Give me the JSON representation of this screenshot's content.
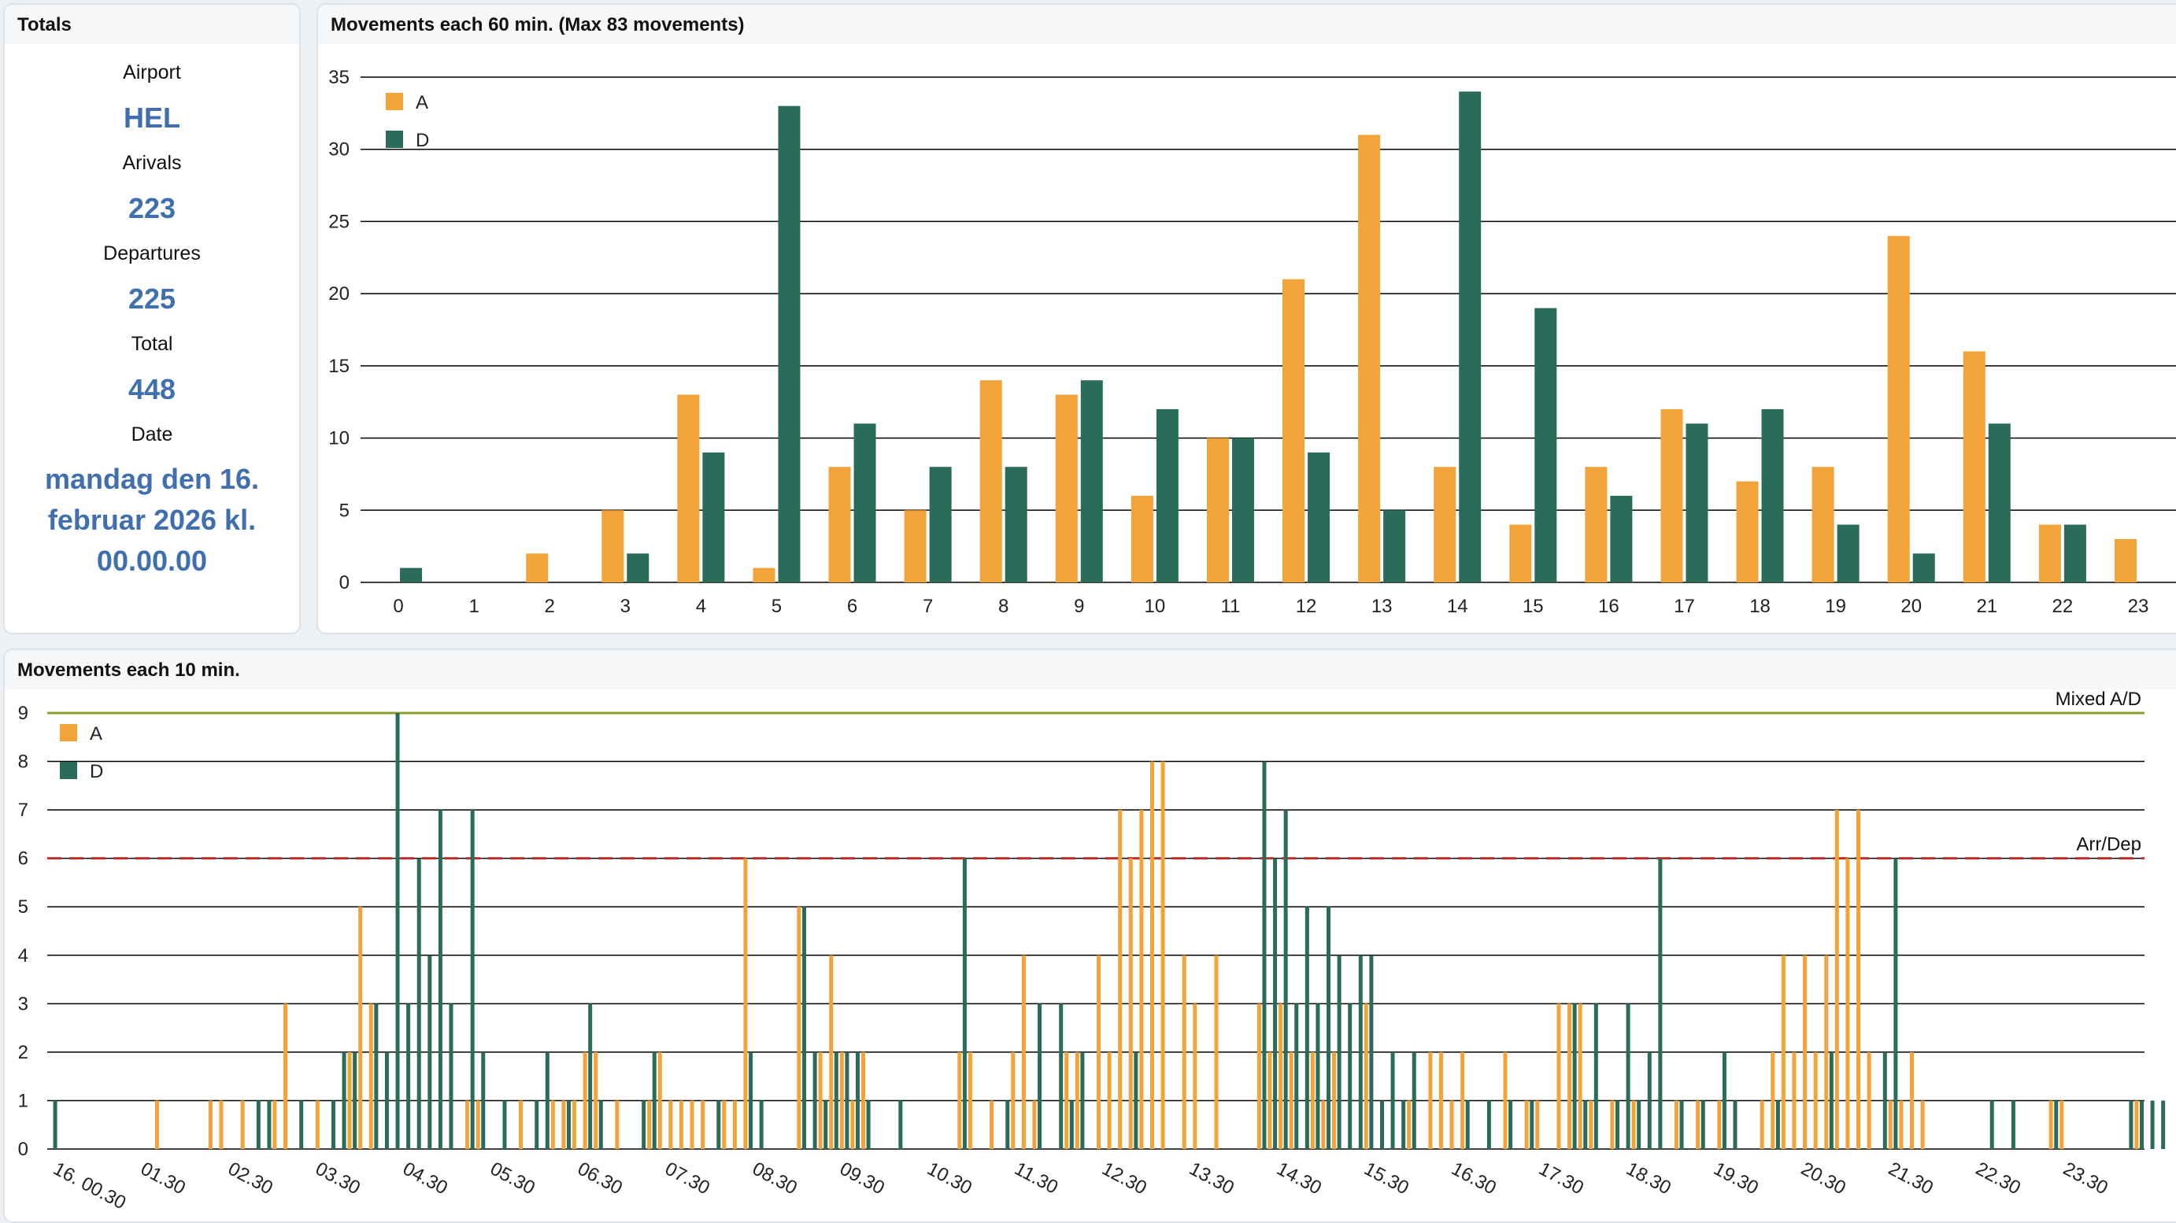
{
  "colors": {
    "arrival": "#f2a33a",
    "departure": "#2a6b5a",
    "mixed_line": "#8aa02a",
    "arrdep_line": "#c0302a",
    "grid": "#000000",
    "value_text": "#3f6fae"
  },
  "totals": {
    "title": "Totals",
    "airport_label": "Airport",
    "airport": "HEL",
    "arrivals_label": "Arivals",
    "arrivals": "223",
    "departures_label": "Departures",
    "departures": "225",
    "total_label": "Total",
    "total": "448",
    "date_label": "Date",
    "date": "mandag den 16. februar 2026 kl. 00.00.00"
  },
  "chart_data": [
    {
      "type": "bar",
      "title": "Movements each 60 min. (Max 83 movements)",
      "legend": "top-left",
      "ylim": [
        0,
        35
      ],
      "yticks": [
        0,
        5,
        10,
        15,
        20,
        25,
        30,
        35
      ],
      "categories": [
        "0",
        "1",
        "2",
        "3",
        "4",
        "5",
        "6",
        "7",
        "8",
        "9",
        "10",
        "11",
        "12",
        "13",
        "14",
        "15",
        "16",
        "17",
        "18",
        "19",
        "20",
        "21",
        "22",
        "23"
      ],
      "series": [
        {
          "name": "A",
          "values": [
            0,
            0,
            2,
            5,
            13,
            1,
            8,
            5,
            14,
            13,
            6,
            10,
            21,
            31,
            8,
            4,
            8,
            12,
            7,
            8,
            24,
            16,
            4,
            3
          ]
        },
        {
          "name": "D",
          "values": [
            1,
            0,
            0,
            2,
            9,
            33,
            11,
            8,
            8,
            14,
            12,
            10,
            9,
            5,
            34,
            19,
            6,
            11,
            12,
            4,
            2,
            11,
            4,
            0
          ]
        }
      ],
      "grid": true
    },
    {
      "type": "bar",
      "title": "Movements each 10 min.",
      "legend": "top-left",
      "ylim": [
        0,
        9
      ],
      "yticks": [
        0,
        1,
        2,
        3,
        4,
        5,
        6,
        7,
        8,
        9
      ],
      "x_tick_labels": [
        "16. 00.30",
        "01.30",
        "02.30",
        "03.30",
        "04.30",
        "05.30",
        "06.30",
        "07.30",
        "08.30",
        "09.30",
        "10.30",
        "11.30",
        "12.30",
        "13.30",
        "14.30",
        "15.30",
        "16.30",
        "17.30",
        "18.30",
        "19.30",
        "20.30",
        "21.30",
        "22.30",
        "23.30"
      ],
      "reference_lines": [
        {
          "label": "Mixed A/D",
          "value": 9,
          "style": "solid"
        },
        {
          "label": "Arr/Dep",
          "value": 6,
          "style": "dashed"
        }
      ],
      "series": [
        {
          "name": "A",
          "values": [
            0,
            0,
            0,
            0,
            0,
            0,
            0,
            0,
            0,
            0,
            1,
            0,
            0,
            0,
            0,
            1,
            1,
            0,
            1,
            0,
            0,
            1,
            3,
            0,
            0,
            1,
            0,
            0,
            2,
            5,
            3,
            0,
            0,
            0,
            0,
            0,
            0,
            0,
            0,
            1,
            1,
            0,
            0,
            0,
            1,
            0,
            0,
            1,
            1,
            1,
            2,
            2,
            0,
            1,
            0,
            0,
            1,
            2,
            1,
            1,
            1,
            1,
            0,
            1,
            1,
            6,
            0,
            0,
            0,
            0,
            5,
            0,
            2,
            4,
            2,
            1,
            2,
            0,
            0,
            0,
            0,
            0,
            0,
            0,
            0,
            2,
            2,
            0,
            1,
            0,
            2,
            4,
            1,
            0,
            0,
            2,
            2,
            0,
            4,
            2,
            7,
            6,
            7,
            8,
            8,
            0,
            4,
            3,
            0,
            4,
            0,
            0,
            0,
            3,
            2,
            3,
            2,
            0,
            2,
            1,
            2,
            0,
            0,
            3,
            0,
            0,
            0,
            1,
            0,
            2,
            2,
            1,
            2,
            0,
            0,
            0,
            2,
            0,
            1,
            1,
            0,
            3,
            3,
            3,
            1,
            0,
            1,
            0,
            1,
            0,
            0,
            0,
            1,
            0,
            1,
            0,
            1,
            0,
            0,
            0,
            1,
            2,
            4,
            2,
            4,
            2,
            4,
            7,
            6,
            7,
            2,
            0,
            1,
            1,
            2,
            1,
            0,
            0,
            0,
            0,
            0,
            0,
            0,
            0,
            0,
            0,
            0,
            1,
            1,
            0,
            0,
            0,
            0,
            0,
            0,
            1
          ]
        },
        {
          "name": "D",
          "values": [
            1,
            0,
            0,
            0,
            0,
            0,
            0,
            0,
            0,
            0,
            0,
            0,
            0,
            0,
            0,
            0,
            0,
            0,
            0,
            1,
            1,
            0,
            0,
            1,
            0,
            0,
            1,
            2,
            2,
            0,
            3,
            2,
            9,
            3,
            6,
            4,
            7,
            3,
            0,
            7,
            2,
            0,
            1,
            0,
            0,
            1,
            2,
            0,
            1,
            0,
            3,
            1,
            0,
            0,
            0,
            1,
            2,
            0,
            0,
            0,
            0,
            0,
            1,
            0,
            0,
            2,
            1,
            0,
            0,
            0,
            5,
            2,
            1,
            2,
            2,
            2,
            1,
            0,
            0,
            1,
            0,
            0,
            0,
            0,
            0,
            6,
            0,
            0,
            0,
            1,
            0,
            0,
            3,
            0,
            3,
            1,
            2,
            0,
            0,
            0,
            0,
            2,
            0,
            0,
            0,
            0,
            0,
            0,
            0,
            0,
            0,
            0,
            0,
            8,
            6,
            7,
            3,
            5,
            3,
            5,
            4,
            3,
            4,
            4,
            1,
            2,
            1,
            2,
            0,
            0,
            0,
            0,
            1,
            0,
            1,
            0,
            1,
            0,
            1,
            0,
            0,
            0,
            3,
            1,
            3,
            0,
            1,
            3,
            1,
            2,
            6,
            0,
            1,
            0,
            1,
            0,
            2,
            1,
            0,
            0,
            0,
            1,
            0,
            0,
            0,
            0,
            2,
            0,
            0,
            0,
            0,
            2,
            6,
            0,
            0,
            0,
            0,
            0,
            0,
            0,
            0,
            1,
            0,
            1,
            0,
            0,
            0,
            1,
            0,
            0,
            0,
            0,
            0,
            0,
            1,
            1,
            1,
            1
          ]
        }
      ],
      "grid": true
    }
  ]
}
